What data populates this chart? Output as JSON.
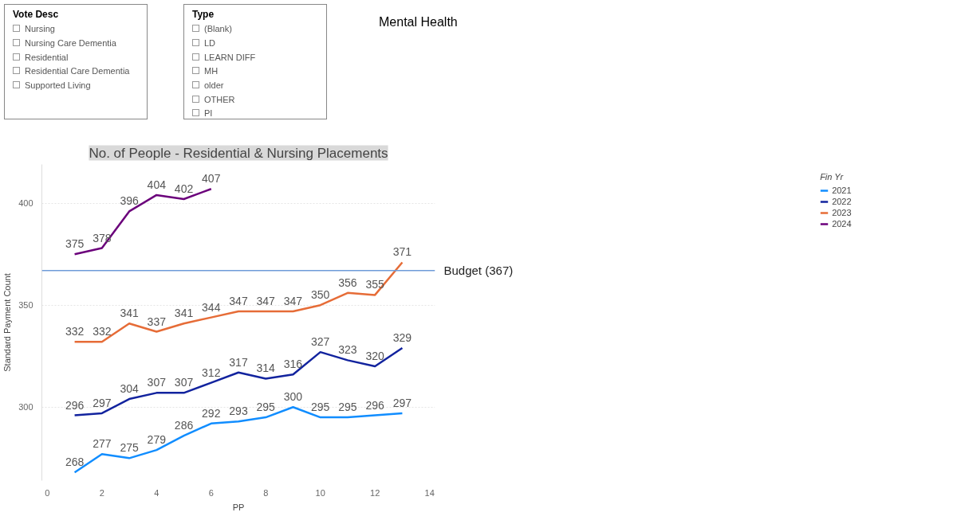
{
  "chart_data": [
    {
      "type": "other",
      "title": "Vote Desc",
      "annotations": [
        "Nursing",
        "Nursing Care Dementia",
        "Residential",
        "Residential Care Dementia",
        "Supported Living"
      ]
    },
    {
      "type": "other",
      "title": "Type",
      "annotations": [
        "(Blank)",
        "LD",
        "LEARN DIFF",
        "MH",
        "older",
        "OTHER",
        "PI"
      ]
    },
    {
      "type": "other",
      "title": "Mental Health"
    },
    {
      "type": "line",
      "title": "No. of People - Residential & Nursing Placements",
      "xlabel": "PP",
      "ylabel": "Standard Payment Count",
      "legend_title": "Fin Yr",
      "legend": "top right",
      "grid": "y",
      "data_labels": true,
      "marker": "none",
      "line_style": "solid",
      "xlim": [
        -0.2,
        14.2
      ],
      "xticks": [
        0,
        2,
        4,
        6,
        8,
        10,
        12,
        14
      ],
      "ylim": [
        264,
        419
      ],
      "yticks": [
        300,
        350,
        400
      ],
      "ref_lines": [
        {
          "axis": "y",
          "value": 367,
          "label": "Budget (367)",
          "color": "#6f9bd8"
        }
      ],
      "series": [
        {
          "name": "2021",
          "color": "#118dff",
          "x": [
            1,
            2,
            3,
            4,
            5,
            6,
            7,
            8,
            9,
            10,
            11,
            12,
            13
          ],
          "values": [
            268,
            277,
            275,
            279,
            286,
            292,
            293,
            295,
            300,
            295,
            295,
            296,
            297
          ]
        },
        {
          "name": "2022",
          "color": "#12239e",
          "x": [
            1,
            2,
            3,
            4,
            5,
            6,
            7,
            8,
            9,
            10,
            11,
            12,
            13
          ],
          "values": [
            296,
            297,
            304,
            307,
            307,
            312,
            317,
            314,
            316,
            327,
            323,
            320,
            329
          ]
        },
        {
          "name": "2023",
          "color": "#e66c37",
          "x": [
            1,
            2,
            3,
            4,
            5,
            6,
            7,
            8,
            9,
            10,
            11,
            12,
            13
          ],
          "values": [
            332,
            332,
            341,
            337,
            341,
            344,
            347,
            347,
            347,
            350,
            356,
            355,
            371
          ]
        },
        {
          "name": "2024",
          "color": "#6b007b",
          "x": [
            1,
            2,
            3,
            4,
            5,
            6
          ],
          "values": [
            375,
            378,
            396,
            404,
            402,
            407
          ]
        }
      ]
    }
  ]
}
